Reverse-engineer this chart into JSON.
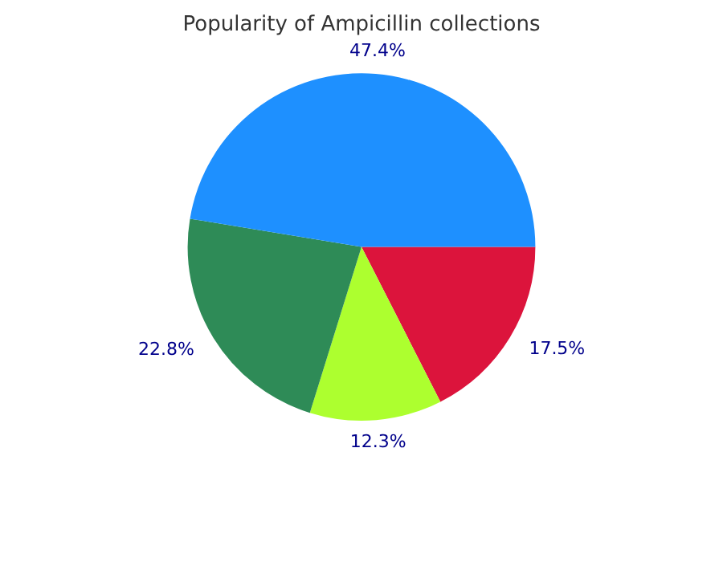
{
  "chart_data": {
    "type": "pie",
    "title": "Popularity of Ampicillin collections",
    "categories": [
      null,
      null,
      null,
      null
    ],
    "values": [
      17.5,
      12.3,
      22.8,
      47.4
    ],
    "colors": [
      "#dc143c",
      "#adff2f",
      "#2e8b57",
      "#1e90ff"
    ],
    "value_labels": [
      "17.5%",
      "12.3%",
      "22.8%",
      "47.4%"
    ],
    "legend": false
  }
}
